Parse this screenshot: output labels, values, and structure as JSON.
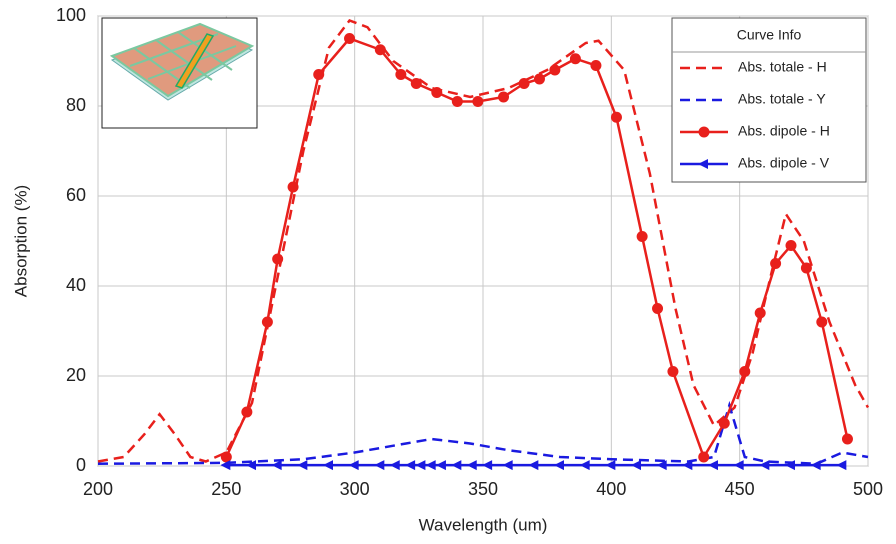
{
  "chart_data": {
    "type": "line",
    "x_label": "Wavelength (um)",
    "y_label": "Absorption (%)",
    "legend_title": "Curve Info",
    "legend": "top-right",
    "grid": true,
    "xlim": [
      200,
      500
    ],
    "xticks": [
      200,
      250,
      300,
      350,
      400,
      450,
      500
    ],
    "ylim": [
      0,
      100
    ],
    "yticks": [
      0,
      20,
      40,
      60,
      80,
      100
    ],
    "series": [
      {
        "name": "Abs. totale - H",
        "color": "#e8201c",
        "dash": true,
        "marker": null,
        "x": [
          200,
          210,
          218,
          224,
          230,
          236,
          242,
          250,
          260,
          270,
          280,
          290,
          298,
          305,
          315,
          330,
          345,
          360,
          375,
          390,
          395,
          405,
          415,
          425,
          432,
          440,
          448,
          455,
          462,
          468,
          475,
          485,
          495,
          500
        ],
        "values": [
          1,
          2,
          7,
          11.5,
          7,
          2,
          1,
          3,
          14,
          42,
          70,
          93,
          99,
          97.5,
          90,
          84,
          82,
          84,
          88,
          94,
          94.5,
          88,
          65,
          35,
          18,
          9,
          13,
          25,
          42,
          56,
          50,
          32,
          18,
          13
        ]
      },
      {
        "name": "Abs. totale - Y",
        "color": "#1a1ae0",
        "dash": true,
        "marker": null,
        "x": [
          200,
          250,
          280,
          300,
          320,
          330,
          345,
          360,
          380,
          400,
          430,
          440,
          446,
          452,
          460,
          480,
          490,
          500
        ],
        "values": [
          0.5,
          0.7,
          1.5,
          3,
          5,
          6,
          5,
          3.5,
          2,
          1.5,
          1,
          2,
          13.5,
          2,
          1,
          0.5,
          3,
          2
        ]
      },
      {
        "name": "Abs. dipole - H",
        "color": "#e8201c",
        "dash": false,
        "marker": "circle",
        "x": [
          250,
          258,
          266,
          270,
          276,
          286,
          298,
          310,
          318,
          324,
          332,
          340,
          348,
          358,
          366,
          372,
          378,
          386,
          394,
          402,
          412,
          418,
          424,
          436,
          444,
          452,
          458,
          464,
          470,
          476,
          482,
          492
        ],
        "values": [
          2,
          12,
          32,
          46,
          62,
          87,
          95,
          92.5,
          87,
          85,
          83,
          81,
          81,
          82,
          85,
          86,
          88,
          90.5,
          89,
          77.5,
          51,
          35,
          21,
          2,
          9.5,
          21,
          34,
          45,
          49,
          44,
          32,
          6
        ]
      },
      {
        "name": "Abs. dipole - V",
        "color": "#1a1ae0",
        "dash": false,
        "marker": "triangle",
        "x": [
          250,
          260,
          270,
          280,
          290,
          300,
          310,
          316,
          322,
          326,
          330,
          334,
          340,
          346,
          352,
          360,
          370,
          380,
          390,
          400,
          410,
          420,
          430,
          440,
          450,
          460,
          470,
          480,
          490
        ],
        "values": [
          0.2,
          0.2,
          0.2,
          0.2,
          0.2,
          0.2,
          0.2,
          0.2,
          0.2,
          0.2,
          0.2,
          0.2,
          0.2,
          0.2,
          0.2,
          0.2,
          0.2,
          0.2,
          0.2,
          0.2,
          0.2,
          0.2,
          0.2,
          0.2,
          0.2,
          0.2,
          0.2,
          0.2,
          0.2
        ]
      }
    ]
  }
}
